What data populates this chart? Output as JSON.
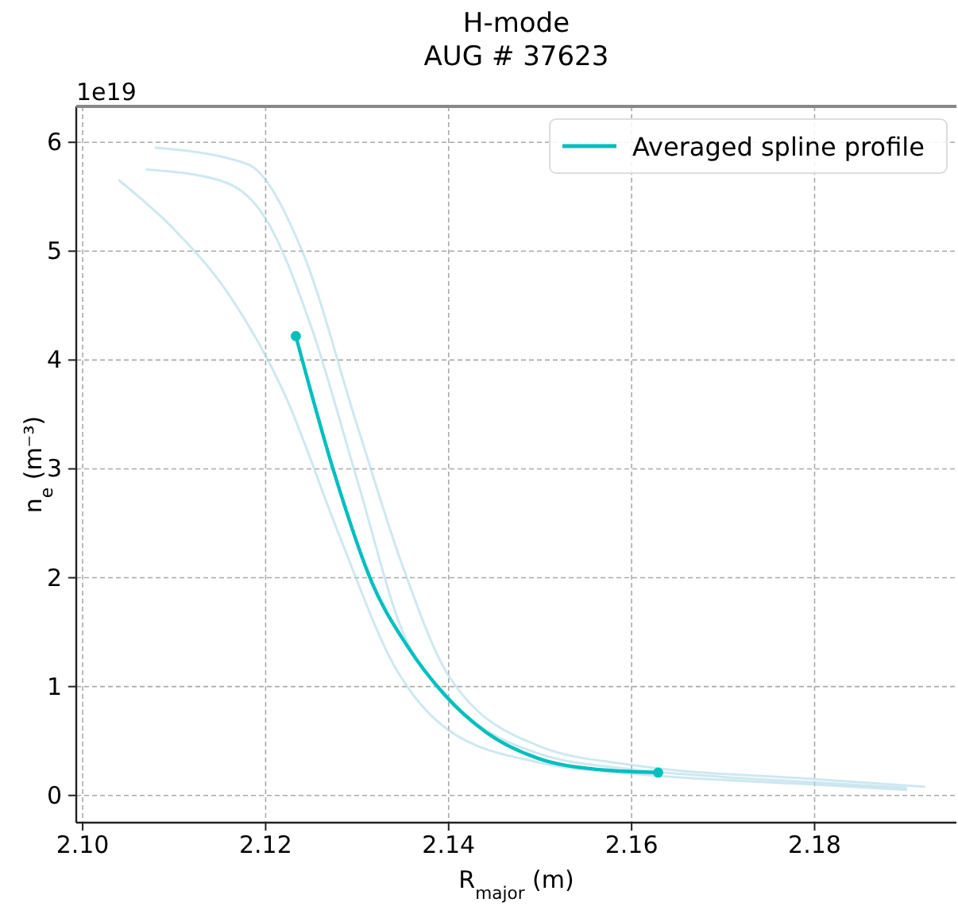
{
  "chart_data": {
    "type": "line",
    "title": "H-mode",
    "subtitle": "AUG # 37623",
    "xlabel": "R$_{major}$  (m)",
    "ylabel": "n$_{e}$ (m⁻³)",
    "annotations": [
      "1e19"
    ],
    "xlim": [
      2.0993,
      2.1955
    ],
    "xticks": [
      {
        "value": 2.1,
        "label": "2.10"
      },
      {
        "value": 2.12,
        "label": "2.12"
      },
      {
        "value": 2.14,
        "label": "2.14"
      },
      {
        "value": 2.16,
        "label": "2.16"
      },
      {
        "value": 2.18,
        "label": "2.18"
      }
    ],
    "ylim": [
      -0.25,
      6.33
    ],
    "yticks": [
      0,
      1,
      2,
      3,
      4,
      5,
      6
    ],
    "grid": true,
    "legend": "top right",
    "line_style": "solid",
    "marker": "none",
    "series": [
      {
        "color": "#add8e6",
        "x": [
          2.107,
          2.115,
          2.12,
          2.125,
          2.13,
          2.135,
          2.14,
          2.15,
          2.16,
          2.17,
          2.18,
          2.19
        ],
        "values": [
          5.75,
          5.65,
          5.3,
          4.3,
          2.9,
          1.5,
          0.9,
          0.38,
          0.24,
          0.17,
          0.12,
          0.07
        ]
      },
      {
        "color": "#add8e6",
        "x": [
          2.108,
          2.118,
          2.124,
          2.13,
          2.135,
          2.14,
          2.15,
          2.16,
          2.18,
          2.192
        ],
        "values": [
          5.95,
          5.8,
          5.0,
          3.4,
          2.1,
          1.1,
          0.45,
          0.28,
          0.15,
          0.08
        ]
      },
      {
        "color": "#add8e6",
        "x": [
          2.104,
          2.11,
          2.116,
          2.122,
          2.128,
          2.134,
          2.14,
          2.15,
          2.16,
          2.18,
          2.19
        ],
        "values": [
          5.65,
          5.2,
          4.6,
          3.7,
          2.4,
          1.2,
          0.6,
          0.3,
          0.2,
          0.1,
          0.05
        ]
      },
      {
        "name": "Averaged spline profile",
        "color": "#00bfbf",
        "x": [
          2.1233,
          2.1274,
          2.1317,
          2.1355,
          2.1395,
          2.1441,
          2.1498,
          2.1562,
          2.1629
        ],
        "values": [
          4.22,
          2.99,
          1.94,
          1.37,
          0.93,
          0.58,
          0.34,
          0.24,
          0.21
        ]
      },
      {
        "type": "scatter",
        "color": "#00bfbf",
        "marker": "circle",
        "x": [
          2.1233,
          2.1629
        ],
        "values": [
          4.22,
          0.21
        ]
      }
    ]
  }
}
